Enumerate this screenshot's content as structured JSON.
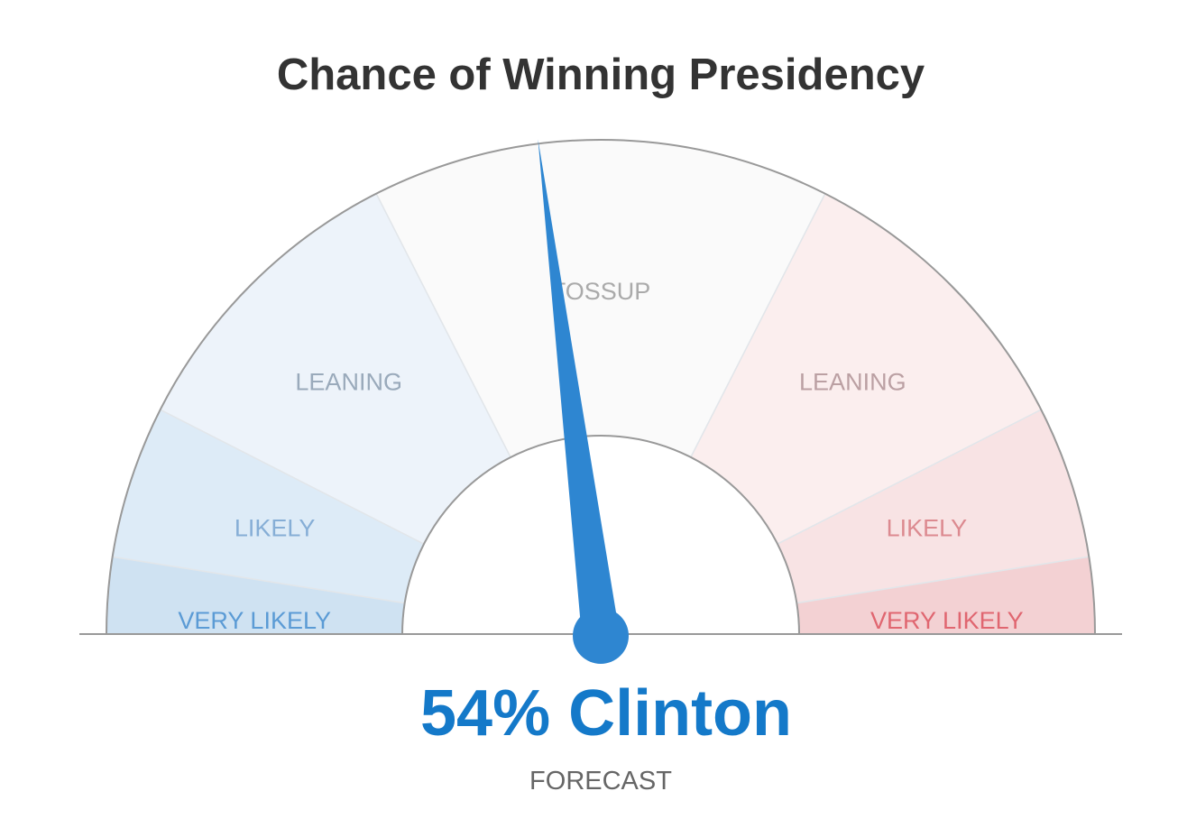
{
  "chart_data": {
    "type": "gauge",
    "title": "Chance of Winning Presidency",
    "value": 54,
    "unit": "%",
    "leader": "Clinton",
    "result_label": "54% Clinton",
    "sub_label": "FORECAST",
    "zones": [
      {
        "label": "VERY LIKELY",
        "side": "left",
        "from": 0,
        "to": 5,
        "color": "#cfe2f2",
        "label_color": "#5b9bd5"
      },
      {
        "label": "LIKELY",
        "side": "left",
        "from": 5,
        "to": 15,
        "color": "#ddebf7",
        "label_color": "#86aed6"
      },
      {
        "label": "LEANING",
        "side": "left",
        "from": 15,
        "to": 35,
        "color": "#edf3fa",
        "label_color": "#9aaabb"
      },
      {
        "label": "TOSSUP",
        "side": "center",
        "from": 35,
        "to": 65,
        "color": "#fafafa",
        "label_color": "#aaaaaa"
      },
      {
        "label": "LEANING",
        "side": "right",
        "from": 65,
        "to": 85,
        "color": "#fbeeee",
        "label_color": "#bba0a3"
      },
      {
        "label": "LIKELY",
        "side": "right",
        "from": 85,
        "to": 95,
        "color": "#f8e3e4",
        "label_color": "#dc8a90"
      },
      {
        "label": "VERY LIKELY",
        "side": "right",
        "from": 95,
        "to": 100,
        "color": "#f3d1d3",
        "label_color": "#e06670"
      }
    ],
    "colors": {
      "needle": "#2e86d1",
      "result_text": "#1479c9",
      "outline": "#999999"
    }
  }
}
